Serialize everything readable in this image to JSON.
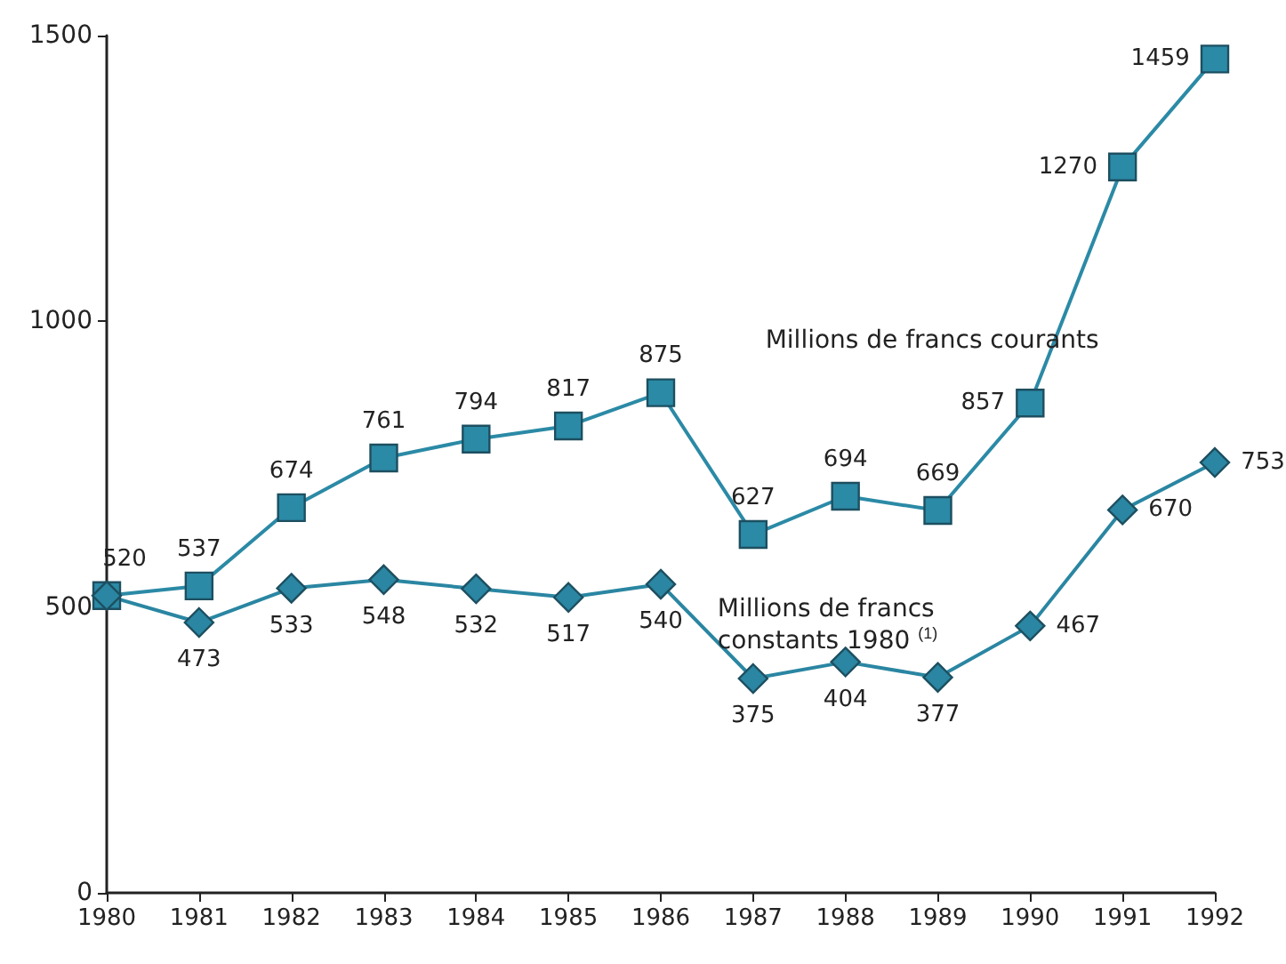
{
  "chart_data": {
    "type": "line",
    "categories": [
      "1980",
      "1981",
      "1982",
      "1983",
      "1984",
      "1985",
      "1986",
      "1987",
      "1988",
      "1989",
      "1990",
      "1991",
      "1992"
    ],
    "series": [
      {
        "name": "Millions de francs courants",
        "color": "#2b8aa6",
        "marker": "square",
        "values": [
          520,
          537,
          674,
          761,
          794,
          817,
          875,
          627,
          694,
          669,
          857,
          1270,
          1459
        ]
      },
      {
        "name": "Millions de francs constants 1980 $^{(1)}$",
        "color": "#2a86a2",
        "marker": "diamond",
        "values": [
          520,
          473,
          533,
          548,
          532,
          517,
          540,
          375,
          404,
          377,
          467,
          670,
          753
        ],
        "value_labels": [
          null,
          "473",
          "533",
          "548",
          "532",
          "517",
          "540",
          "375",
          "404",
          "377",
          "467",
          "670",
          "753"
        ]
      }
    ],
    "ylim": [
      0,
      1500
    ],
    "yticks": [
      0,
      500,
      1000,
      1500
    ],
    "grid": false,
    "legend": false,
    "data_labels": true,
    "line_style": "solid"
  }
}
